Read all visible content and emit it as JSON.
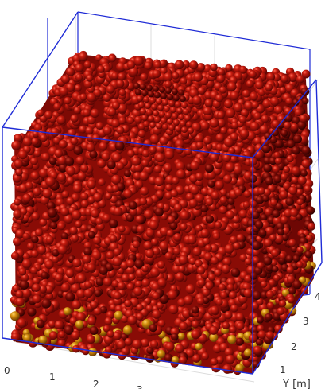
{
  "figure": {
    "x_ticks": [
      "0",
      "1",
      "2",
      "3"
    ],
    "y_ticks": [
      "1",
      "2",
      "3",
      "4"
    ],
    "y_axis_label": "Y [m]"
  },
  "colors": {
    "background": "#ffffff",
    "box_edges": "#1f2bd6",
    "grid": "#d9d9d9",
    "particle_red": "#c41a0e",
    "particle_dark_red": "#6e0704",
    "particle_orange": "#d18a0a"
  },
  "plot_type": "3d particle packing render"
}
